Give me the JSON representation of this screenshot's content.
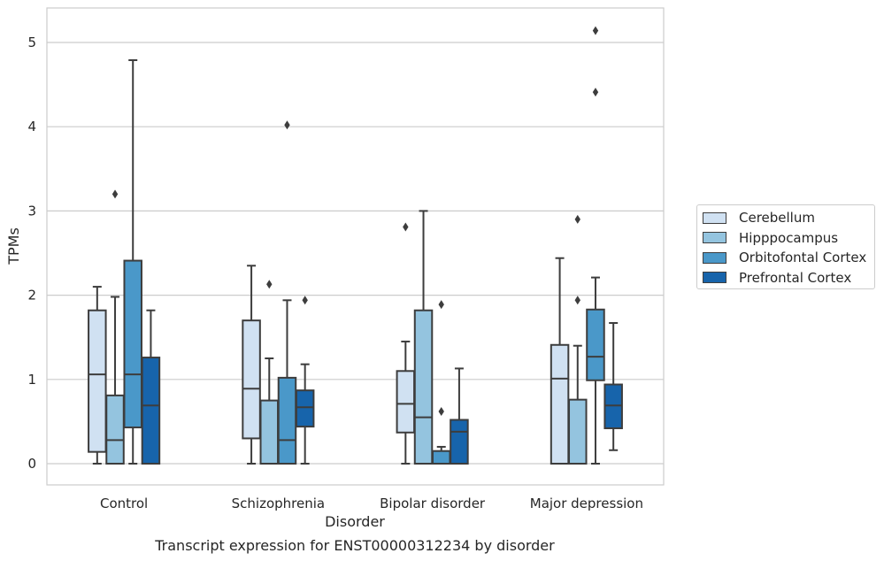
{
  "chart_data": {
    "type": "box",
    "title": "",
    "xlabel": "Disorder",
    "ylabel": "TPMs",
    "caption": "Transcript expression for ENST00000312234 by disorder",
    "categories": [
      "Control",
      "Schizophrenia",
      "Bipolar disorder",
      "Major depression"
    ],
    "ylim": [
      -0.25,
      5.4
    ],
    "yticks": [
      "0",
      "1",
      "2",
      "3",
      "4",
      "5"
    ],
    "grid": "horizontal",
    "legend_position": "right",
    "series": [
      {
        "name": "Cerebellum",
        "color": "#d0e1f2",
        "boxes": [
          {
            "min": 0,
            "q1": 0.14,
            "median": 1.06,
            "q3": 1.82,
            "max": 2.1,
            "outliers": []
          },
          {
            "min": 0,
            "q1": 0.3,
            "median": 0.89,
            "q3": 1.7,
            "max": 2.35,
            "outliers": []
          },
          {
            "min": 0,
            "q1": 0.37,
            "median": 0.71,
            "q3": 1.1,
            "max": 1.45,
            "outliers": [
              2.81
            ]
          },
          {
            "min": 0,
            "q1": 0,
            "median": 1.01,
            "q3": 1.41,
            "max": 2.44,
            "outliers": []
          }
        ]
      },
      {
        "name": "Hipppocampus",
        "color": "#94c4df",
        "boxes": [
          {
            "min": 0,
            "q1": 0,
            "median": 0.28,
            "q3": 0.81,
            "max": 1.98,
            "outliers": [
              3.2
            ]
          },
          {
            "min": 0,
            "q1": 0,
            "median": 0,
            "q3": 0.75,
            "max": 1.25,
            "outliers": [
              2.13
            ]
          },
          {
            "min": 0,
            "q1": 0,
            "median": 0.55,
            "q3": 1.82,
            "max": 3.0,
            "outliers": []
          },
          {
            "min": 0,
            "q1": 0,
            "median": 0,
            "q3": 0.76,
            "max": 1.4,
            "outliers": [
              1.94,
              2.9
            ]
          }
        ]
      },
      {
        "name": "Orbitofontal Cortex",
        "color": "#4a98c9",
        "boxes": [
          {
            "min": 0,
            "q1": 0.43,
            "median": 1.06,
            "q3": 2.41,
            "max": 4.79,
            "outliers": []
          },
          {
            "min": 0,
            "q1": 0,
            "median": 0.28,
            "q3": 1.02,
            "max": 1.94,
            "outliers": [
              4.02
            ]
          },
          {
            "min": 0,
            "q1": 0,
            "median": 0,
            "q3": 0.15,
            "max": 0.2,
            "outliers": [
              0.62,
              1.89
            ]
          },
          {
            "min": 0,
            "q1": 0.99,
            "median": 1.27,
            "q3": 1.83,
            "max": 2.21,
            "outliers": [
              4.41,
              5.14
            ]
          }
        ]
      },
      {
        "name": "Prefrontal Cortex",
        "color": "#1764ab",
        "boxes": [
          {
            "min": 0,
            "q1": 0,
            "median": 0.69,
            "q3": 1.26,
            "max": 1.82,
            "outliers": []
          },
          {
            "min": 0,
            "q1": 0.44,
            "median": 0.67,
            "q3": 0.87,
            "max": 1.18,
            "outliers": [
              1.94
            ]
          },
          {
            "min": 0,
            "q1": 0,
            "median": 0.38,
            "q3": 0.52,
            "max": 1.13,
            "outliers": []
          },
          {
            "min": 0.16,
            "q1": 0.42,
            "median": 0.69,
            "q3": 0.94,
            "max": 1.67,
            "outliers": []
          }
        ]
      }
    ]
  }
}
